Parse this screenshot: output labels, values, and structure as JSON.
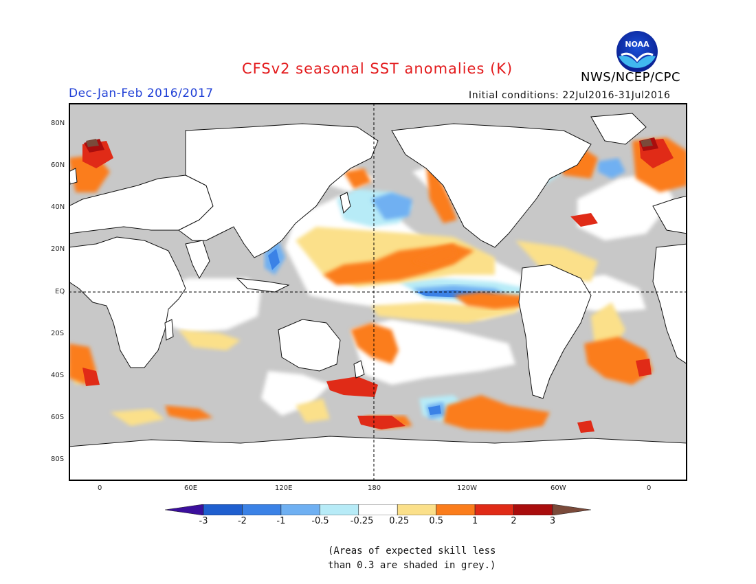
{
  "title": "CFSv2 seasonal SST anomalies (K)",
  "season": "Dec-Jan-Feb 2016/2017",
  "initial_conditions": "Initial conditions: 22Jul2016-31Jul2016",
  "organization": "NWS/NCEP/CPC",
  "logo_text": "NOAA",
  "lat_labels": [
    "80N",
    "60N",
    "40N",
    "20N",
    "EQ",
    "20S",
    "40S",
    "60S",
    "80S"
  ],
  "lon_labels": [
    "0",
    "60E",
    "120E",
    "180",
    "120W",
    "60W",
    "0"
  ],
  "colorbar": {
    "labels": [
      "-3",
      "-2",
      "-1",
      "-0.5",
      "-0.25",
      "0.25",
      "0.5",
      "1",
      "2",
      "3"
    ],
    "colors": [
      "#3b0f9c",
      "#1f5fcf",
      "#3b82e6",
      "#6fb0f2",
      "#b7ebf7",
      "#ffffff",
      "#fbe08a",
      "#fb7d1c",
      "#e02b17",
      "#a90d0d",
      "#7a4a3a"
    ]
  },
  "skill_note_line1": "(Areas of expected skill less",
  "skill_note_line2": "than 0.3 are shaded in grey.)",
  "colors": {
    "land": "#ffffff",
    "low_skill": "#c8c8c8",
    "title": "#e31a1c",
    "season": "#1f3fd6"
  }
}
